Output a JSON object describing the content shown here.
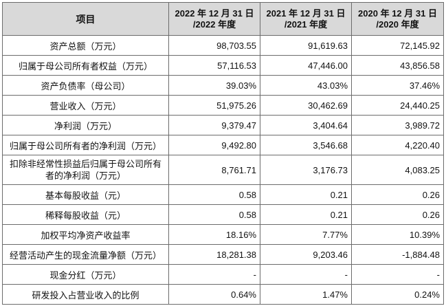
{
  "table": {
    "headers": [
      "项目",
      "2022 年 12 月 31 日 /2022 年度",
      "2021 年 12 月 31 日 /2021 年度",
      "2020 年 12 月 31 日 /2020 年度"
    ],
    "rows": [
      {
        "label": "资产总额（万元）",
        "values": [
          "98,703.55",
          "91,619.63",
          "72,145.92"
        ]
      },
      {
        "label": "归属于母公司所有者权益（万元）",
        "values": [
          "57,116.53",
          "47,446.00",
          "43,856.58"
        ]
      },
      {
        "label": "资产负债率（母公司）",
        "values": [
          "39.03%",
          "43.03%",
          "37.46%"
        ]
      },
      {
        "label": "营业收入（万元）",
        "values": [
          "51,975.26",
          "30,462.69",
          "24,440.25"
        ]
      },
      {
        "label": "净利润（万元）",
        "values": [
          "9,379.47",
          "3,404.64",
          "3,989.72"
        ]
      },
      {
        "label": "归属于母公司所有者的净利润（万元）",
        "values": [
          "9,492.80",
          "3,546.68",
          "4,220.40"
        ]
      },
      {
        "label": "扣除非经常性损益后归属于母公司所有者的净利润（万元）",
        "values": [
          "8,761.71",
          "3,176.73",
          "4,083.25"
        ]
      },
      {
        "label": "基本每股收益（元）",
        "values": [
          "0.58",
          "0.21",
          "0.26"
        ]
      },
      {
        "label": "稀释每股收益（元）",
        "values": [
          "0.58",
          "0.21",
          "0.26"
        ]
      },
      {
        "label": "加权平均净资产收益率",
        "values": [
          "18.16%",
          "7.77%",
          "10.39%"
        ]
      },
      {
        "label": "经营活动产生的现金流量净额（万元）",
        "values": [
          "18,281.38",
          "9,203.46",
          "-1,884.48"
        ]
      },
      {
        "label": "现金分红（万元）",
        "values": [
          "-",
          "-",
          "-"
        ]
      },
      {
        "label": "研发投入占营业收入的比例",
        "values": [
          "0.64%",
          "1.47%",
          "0.24%"
        ]
      }
    ]
  }
}
